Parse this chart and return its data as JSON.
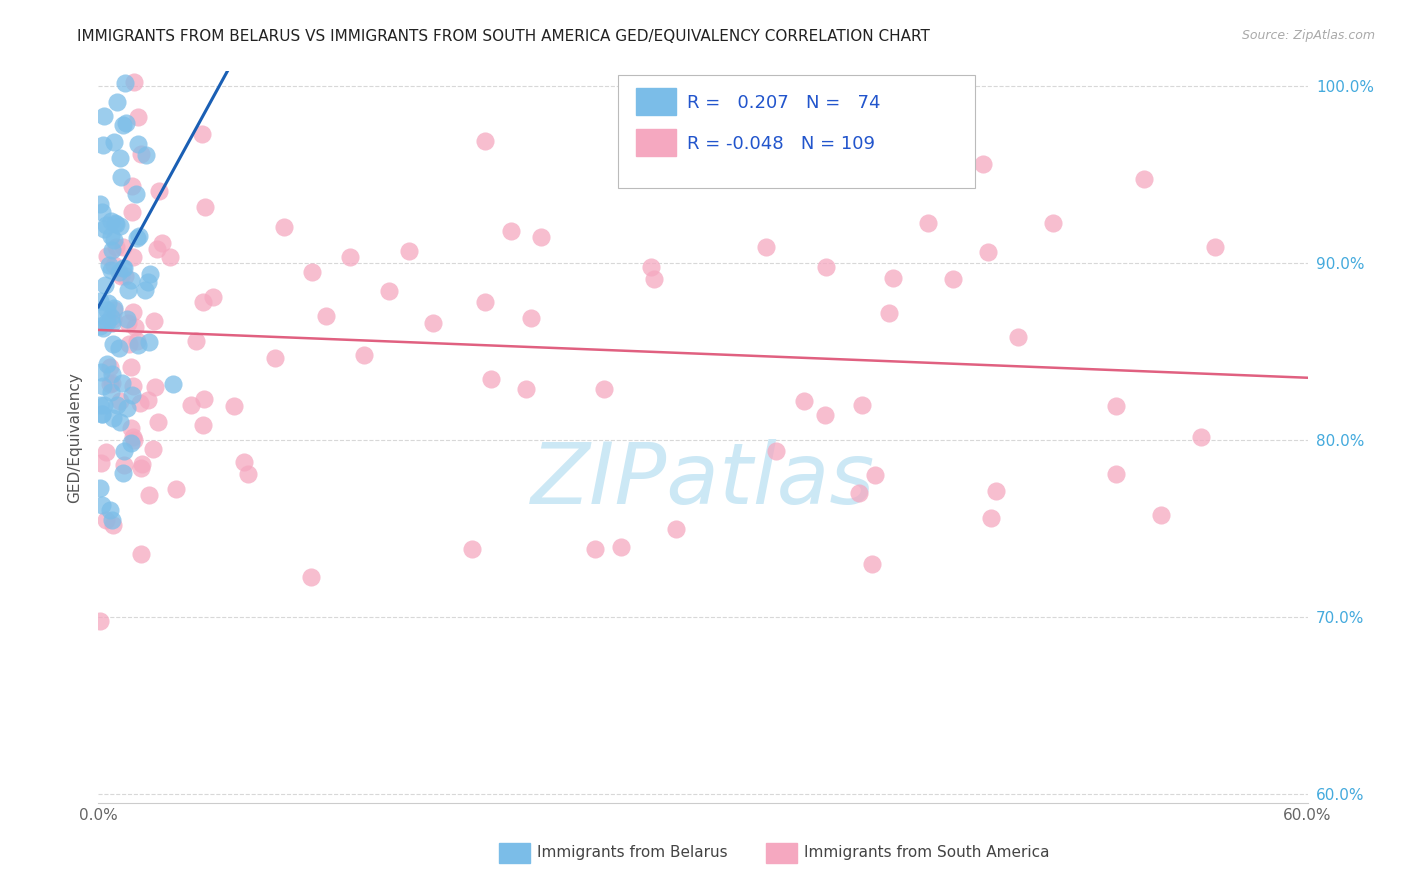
{
  "title": "IMMIGRANTS FROM BELARUS VS IMMIGRANTS FROM SOUTH AMERICA GED/EQUIVALENCY CORRELATION CHART",
  "source": "Source: ZipAtlas.com",
  "ylabel": "GED/Equivalency",
  "xmin": 0.0,
  "xmax": 0.6,
  "ymin": 0.595,
  "ymax": 1.008,
  "x_ticks": [
    0.0,
    0.1,
    0.2,
    0.3,
    0.4,
    0.5,
    0.6
  ],
  "x_tick_labels": [
    "0.0%",
    "",
    "",
    "",
    "",
    "",
    "60.0%"
  ],
  "y_ticks": [
    0.6,
    0.7,
    0.8,
    0.9,
    1.0
  ],
  "y_tick_labels": [
    "60.0%",
    "70.0%",
    "80.0%",
    "90.0%",
    "100.0%"
  ],
  "R_belarus": 0.207,
  "N_belarus": 74,
  "R_south_america": -0.048,
  "N_south_america": 109,
  "color_belarus": "#7bbde8",
  "color_south_america": "#f5a8c0",
  "trendline_belarus": "#1a5fb4",
  "trendline_south": "#e06080",
  "watermark_color": "#cce8f5",
  "grid_color": "#d8d8d8",
  "title_color": "#222222",
  "source_color": "#aaaaaa",
  "right_tick_color": "#44aadd",
  "legend_text_color": "#2255cc",
  "seed": 77
}
